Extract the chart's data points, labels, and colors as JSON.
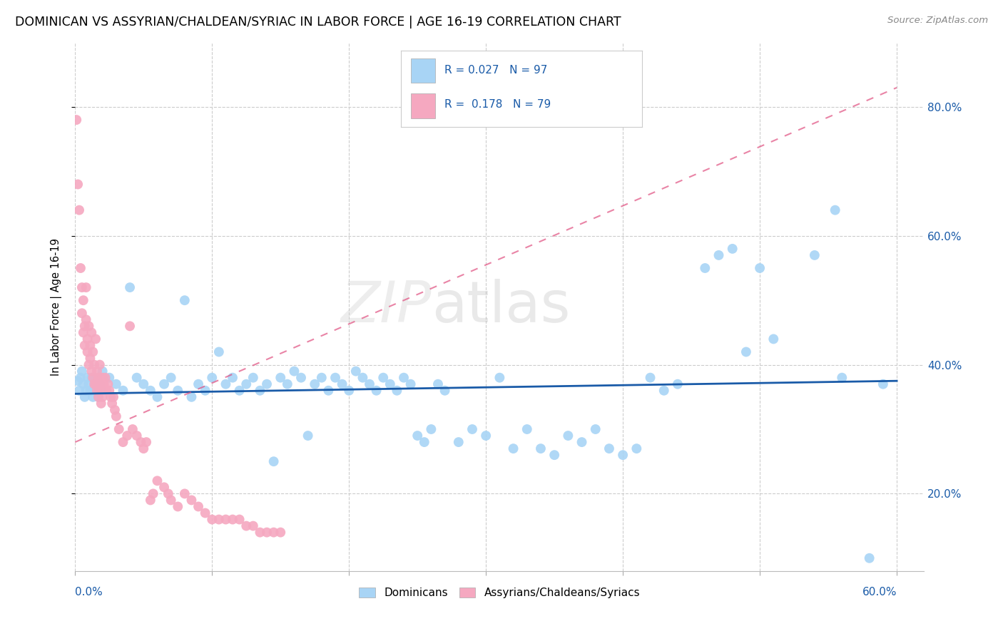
{
  "title": "DOMINICAN VS ASSYRIAN/CHALDEAN/SYRIAC IN LABOR FORCE | AGE 16-19 CORRELATION CHART",
  "source": "Source: ZipAtlas.com",
  "ylabel": "In Labor Force | Age 16-19",
  "xlim": [
    0.0,
    0.62
  ],
  "ylim": [
    0.08,
    0.9
  ],
  "yticks": [
    0.2,
    0.4,
    0.6,
    0.8
  ],
  "ytick_labels": [
    "20.0%",
    "40.0%",
    "60.0%",
    "80.0%"
  ],
  "xtick_labels": [
    "0.0%",
    "",
    "",
    "",
    "",
    "",
    "60.0%"
  ],
  "xticks": [
    0.0,
    0.1,
    0.2,
    0.3,
    0.4,
    0.5,
    0.6
  ],
  "blue_color": "#A8D4F5",
  "pink_color": "#F5A8C0",
  "blue_line_color": "#1A5BA8",
  "pink_line_color": "#E05080",
  "text_blue": "#1A5BA8",
  "watermark": "ZIPatlas",
  "blue_scatter": [
    [
      0.002,
      0.375
    ],
    [
      0.003,
      0.36
    ],
    [
      0.004,
      0.38
    ],
    [
      0.005,
      0.39
    ],
    [
      0.006,
      0.37
    ],
    [
      0.007,
      0.35
    ],
    [
      0.008,
      0.36
    ],
    [
      0.009,
      0.38
    ],
    [
      0.01,
      0.37
    ],
    [
      0.011,
      0.36
    ],
    [
      0.012,
      0.38
    ],
    [
      0.013,
      0.35
    ],
    [
      0.014,
      0.37
    ],
    [
      0.015,
      0.36
    ],
    [
      0.016,
      0.38
    ],
    [
      0.017,
      0.35
    ],
    [
      0.018,
      0.37
    ],
    [
      0.019,
      0.36
    ],
    [
      0.02,
      0.39
    ],
    [
      0.025,
      0.38
    ],
    [
      0.03,
      0.37
    ],
    [
      0.035,
      0.36
    ],
    [
      0.04,
      0.52
    ],
    [
      0.045,
      0.38
    ],
    [
      0.05,
      0.37
    ],
    [
      0.055,
      0.36
    ],
    [
      0.06,
      0.35
    ],
    [
      0.065,
      0.37
    ],
    [
      0.07,
      0.38
    ],
    [
      0.075,
      0.36
    ],
    [
      0.08,
      0.5
    ],
    [
      0.085,
      0.35
    ],
    [
      0.09,
      0.37
    ],
    [
      0.095,
      0.36
    ],
    [
      0.1,
      0.38
    ],
    [
      0.105,
      0.42
    ],
    [
      0.11,
      0.37
    ],
    [
      0.115,
      0.38
    ],
    [
      0.12,
      0.36
    ],
    [
      0.125,
      0.37
    ],
    [
      0.13,
      0.38
    ],
    [
      0.135,
      0.36
    ],
    [
      0.14,
      0.37
    ],
    [
      0.145,
      0.25
    ],
    [
      0.15,
      0.38
    ],
    [
      0.155,
      0.37
    ],
    [
      0.16,
      0.39
    ],
    [
      0.165,
      0.38
    ],
    [
      0.17,
      0.29
    ],
    [
      0.175,
      0.37
    ],
    [
      0.18,
      0.38
    ],
    [
      0.185,
      0.36
    ],
    [
      0.19,
      0.38
    ],
    [
      0.195,
      0.37
    ],
    [
      0.2,
      0.36
    ],
    [
      0.205,
      0.39
    ],
    [
      0.21,
      0.38
    ],
    [
      0.215,
      0.37
    ],
    [
      0.22,
      0.36
    ],
    [
      0.225,
      0.38
    ],
    [
      0.23,
      0.37
    ],
    [
      0.235,
      0.36
    ],
    [
      0.24,
      0.38
    ],
    [
      0.245,
      0.37
    ],
    [
      0.25,
      0.29
    ],
    [
      0.255,
      0.28
    ],
    [
      0.26,
      0.3
    ],
    [
      0.265,
      0.37
    ],
    [
      0.27,
      0.36
    ],
    [
      0.28,
      0.28
    ],
    [
      0.29,
      0.3
    ],
    [
      0.3,
      0.29
    ],
    [
      0.31,
      0.38
    ],
    [
      0.32,
      0.27
    ],
    [
      0.33,
      0.3
    ],
    [
      0.34,
      0.27
    ],
    [
      0.35,
      0.26
    ],
    [
      0.36,
      0.29
    ],
    [
      0.37,
      0.28
    ],
    [
      0.38,
      0.3
    ],
    [
      0.39,
      0.27
    ],
    [
      0.4,
      0.26
    ],
    [
      0.41,
      0.27
    ],
    [
      0.42,
      0.38
    ],
    [
      0.43,
      0.36
    ],
    [
      0.44,
      0.37
    ],
    [
      0.46,
      0.55
    ],
    [
      0.47,
      0.57
    ],
    [
      0.48,
      0.58
    ],
    [
      0.49,
      0.42
    ],
    [
      0.5,
      0.55
    ],
    [
      0.51,
      0.44
    ],
    [
      0.54,
      0.57
    ],
    [
      0.555,
      0.64
    ],
    [
      0.56,
      0.38
    ],
    [
      0.58,
      0.1
    ],
    [
      0.59,
      0.37
    ]
  ],
  "pink_scatter": [
    [
      0.001,
      0.78
    ],
    [
      0.002,
      0.68
    ],
    [
      0.003,
      0.64
    ],
    [
      0.004,
      0.55
    ],
    [
      0.005,
      0.52
    ],
    [
      0.005,
      0.48
    ],
    [
      0.006,
      0.5
    ],
    [
      0.006,
      0.45
    ],
    [
      0.007,
      0.46
    ],
    [
      0.007,
      0.43
    ],
    [
      0.008,
      0.52
    ],
    [
      0.008,
      0.47
    ],
    [
      0.009,
      0.44
    ],
    [
      0.009,
      0.42
    ],
    [
      0.01,
      0.46
    ],
    [
      0.01,
      0.4
    ],
    [
      0.011,
      0.43
    ],
    [
      0.011,
      0.41
    ],
    [
      0.012,
      0.45
    ],
    [
      0.012,
      0.39
    ],
    [
      0.013,
      0.42
    ],
    [
      0.013,
      0.38
    ],
    [
      0.014,
      0.4
    ],
    [
      0.014,
      0.37
    ],
    [
      0.015,
      0.44
    ],
    [
      0.015,
      0.37
    ],
    [
      0.016,
      0.39
    ],
    [
      0.016,
      0.36
    ],
    [
      0.017,
      0.38
    ],
    [
      0.017,
      0.35
    ],
    [
      0.018,
      0.4
    ],
    [
      0.018,
      0.36
    ],
    [
      0.019,
      0.37
    ],
    [
      0.019,
      0.34
    ],
    [
      0.02,
      0.38
    ],
    [
      0.02,
      0.35
    ],
    [
      0.021,
      0.37
    ],
    [
      0.022,
      0.38
    ],
    [
      0.023,
      0.36
    ],
    [
      0.024,
      0.37
    ],
    [
      0.025,
      0.36
    ],
    [
      0.026,
      0.35
    ],
    [
      0.027,
      0.34
    ],
    [
      0.028,
      0.35
    ],
    [
      0.029,
      0.33
    ],
    [
      0.03,
      0.32
    ],
    [
      0.032,
      0.3
    ],
    [
      0.035,
      0.28
    ],
    [
      0.038,
      0.29
    ],
    [
      0.04,
      0.46
    ],
    [
      0.042,
      0.3
    ],
    [
      0.045,
      0.29
    ],
    [
      0.048,
      0.28
    ],
    [
      0.05,
      0.27
    ],
    [
      0.052,
      0.28
    ],
    [
      0.055,
      0.19
    ],
    [
      0.057,
      0.2
    ],
    [
      0.06,
      0.22
    ],
    [
      0.065,
      0.21
    ],
    [
      0.068,
      0.2
    ],
    [
      0.07,
      0.19
    ],
    [
      0.075,
      0.18
    ],
    [
      0.08,
      0.2
    ],
    [
      0.085,
      0.19
    ],
    [
      0.09,
      0.18
    ],
    [
      0.095,
      0.17
    ],
    [
      0.1,
      0.16
    ],
    [
      0.105,
      0.16
    ],
    [
      0.11,
      0.16
    ],
    [
      0.115,
      0.16
    ],
    [
      0.12,
      0.16
    ],
    [
      0.125,
      0.15
    ],
    [
      0.13,
      0.15
    ],
    [
      0.135,
      0.14
    ],
    [
      0.14,
      0.14
    ],
    [
      0.145,
      0.14
    ],
    [
      0.15,
      0.14
    ]
  ],
  "blue_line_x": [
    0.0,
    0.6
  ],
  "blue_line_y": [
    0.355,
    0.375
  ],
  "pink_line_x": [
    0.0,
    0.6
  ],
  "pink_line_y": [
    0.28,
    0.83
  ]
}
